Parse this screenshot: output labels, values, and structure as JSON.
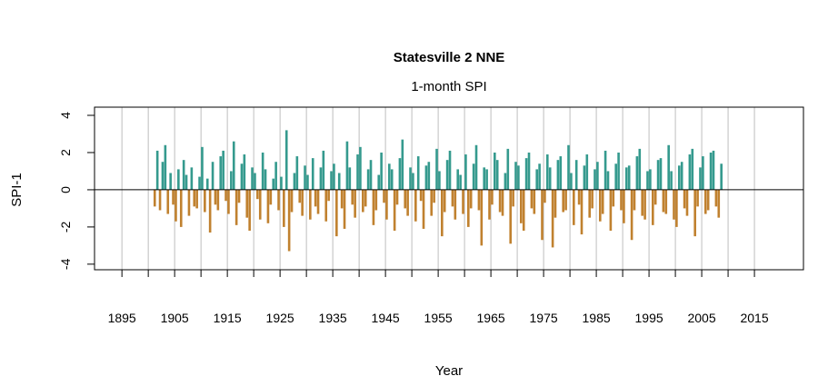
{
  "chart_data": {
    "type": "bar",
    "title": "Statesville 2 NNE",
    "subtitle": "1-month SPI",
    "xlabel": "Year",
    "ylabel": "SPI-1",
    "xlim": [
      1889.8,
      2024.3
    ],
    "ylim": [
      -4.3,
      4.44
    ],
    "yticks": [
      -4,
      -2,
      0,
      2,
      4
    ],
    "xtick_labels": [
      "1895",
      "1905",
      "1915",
      "1925",
      "1935",
      "1945",
      "1955",
      "1965",
      "1975",
      "1985",
      "1995",
      "2005",
      "2015"
    ],
    "grid_years": [
      1895,
      1900,
      1905,
      1910,
      1915,
      1920,
      1925,
      1930,
      1935,
      1940,
      1945,
      1950,
      1955,
      1960,
      1965,
      1970,
      1975,
      1980,
      1985,
      1990,
      1995,
      2000,
      2005,
      2010,
      2015
    ],
    "grid": true,
    "colors": {
      "positive": "#359A8E",
      "negative": "#C0812F",
      "grid": "#BEBEBE"
    },
    "x_start": 1901,
    "x_step": 0.5,
    "values": [
      -0.9,
      2.1,
      -1.1,
      1.5,
      2.4,
      -1.3,
      0.9,
      -0.8,
      -1.7,
      1.1,
      -2.0,
      1.6,
      0.8,
      -1.4,
      1.2,
      -0.9,
      -1.0,
      0.7,
      2.3,
      -1.2,
      0.6,
      -2.3,
      1.5,
      -0.8,
      -1.1,
      1.8,
      2.1,
      -0.6,
      -1.3,
      1.0,
      2.6,
      -1.9,
      -0.7,
      1.4,
      1.9,
      -1.5,
      -2.2,
      1.2,
      0.9,
      -0.5,
      -1.6,
      2.0,
      1.1,
      -1.8,
      -0.8,
      0.6,
      1.5,
      -1.1,
      0.7,
      -2.0,
      3.2,
      -3.3,
      -1.2,
      0.9,
      1.8,
      -0.7,
      -1.4,
      1.3,
      0.8,
      -1.6,
      1.7,
      -0.9,
      -1.3,
      1.2,
      2.1,
      -1.7,
      -0.6,
      1.0,
      1.4,
      -2.5,
      0.9,
      -1.0,
      -2.1,
      2.6,
      1.2,
      -0.8,
      -1.5,
      1.9,
      2.3,
      -1.2,
      -0.9,
      1.1,
      1.6,
      -1.9,
      -1.1,
      0.8,
      2.0,
      -0.7,
      -1.6,
      1.4,
      1.1,
      -2.2,
      -0.8,
      1.7,
      2.7,
      -1.0,
      -1.4,
      1.2,
      0.9,
      -1.7,
      1.8,
      -0.6,
      -2.1,
      1.3,
      1.5,
      -1.4,
      -0.7,
      2.2,
      1.0,
      -2.5,
      -1.2,
      1.6,
      2.1,
      -0.9,
      -1.6,
      1.1,
      0.8,
      -1.3,
      1.9,
      -2.0,
      -1.0,
      1.4,
      2.4,
      -1.1,
      -3.0,
      1.2,
      1.1,
      -1.6,
      -0.8,
      2.0,
      1.6,
      -1.2,
      -1.4,
      0.9,
      2.2,
      -2.9,
      -0.9,
      1.5,
      1.3,
      -1.8,
      -2.2,
      1.7,
      2.0,
      -1.0,
      -1.3,
      1.1,
      1.4,
      -2.7,
      -0.7,
      1.9,
      1.2,
      -3.1,
      -1.5,
      1.6,
      1.8,
      -1.2,
      -1.1,
      2.4,
      0.9,
      -1.9,
      1.6,
      -0.8,
      -2.4,
      1.3,
      1.9,
      -1.5,
      -1.0,
      1.1,
      1.5,
      -1.7,
      -1.3,
      2.1,
      1.0,
      -2.2,
      -0.9,
      1.4,
      2.0,
      -1.1,
      -1.8,
      1.2,
      1.3,
      -2.7,
      -1.1,
      1.8,
      2.2,
      -1.4,
      -1.6,
      1.0,
      1.1,
      -1.9,
      -0.8,
      1.6,
      1.7,
      -1.2,
      -1.3,
      2.4,
      1.0,
      -1.6,
      -2.0,
      1.3,
      1.5,
      -1.0,
      -1.4,
      1.9,
      2.2,
      -2.5,
      -0.9,
      1.2,
      1.8,
      -1.3,
      -1.1,
      2.0,
      2.1,
      -0.9,
      -1.5,
      1.4
    ]
  }
}
